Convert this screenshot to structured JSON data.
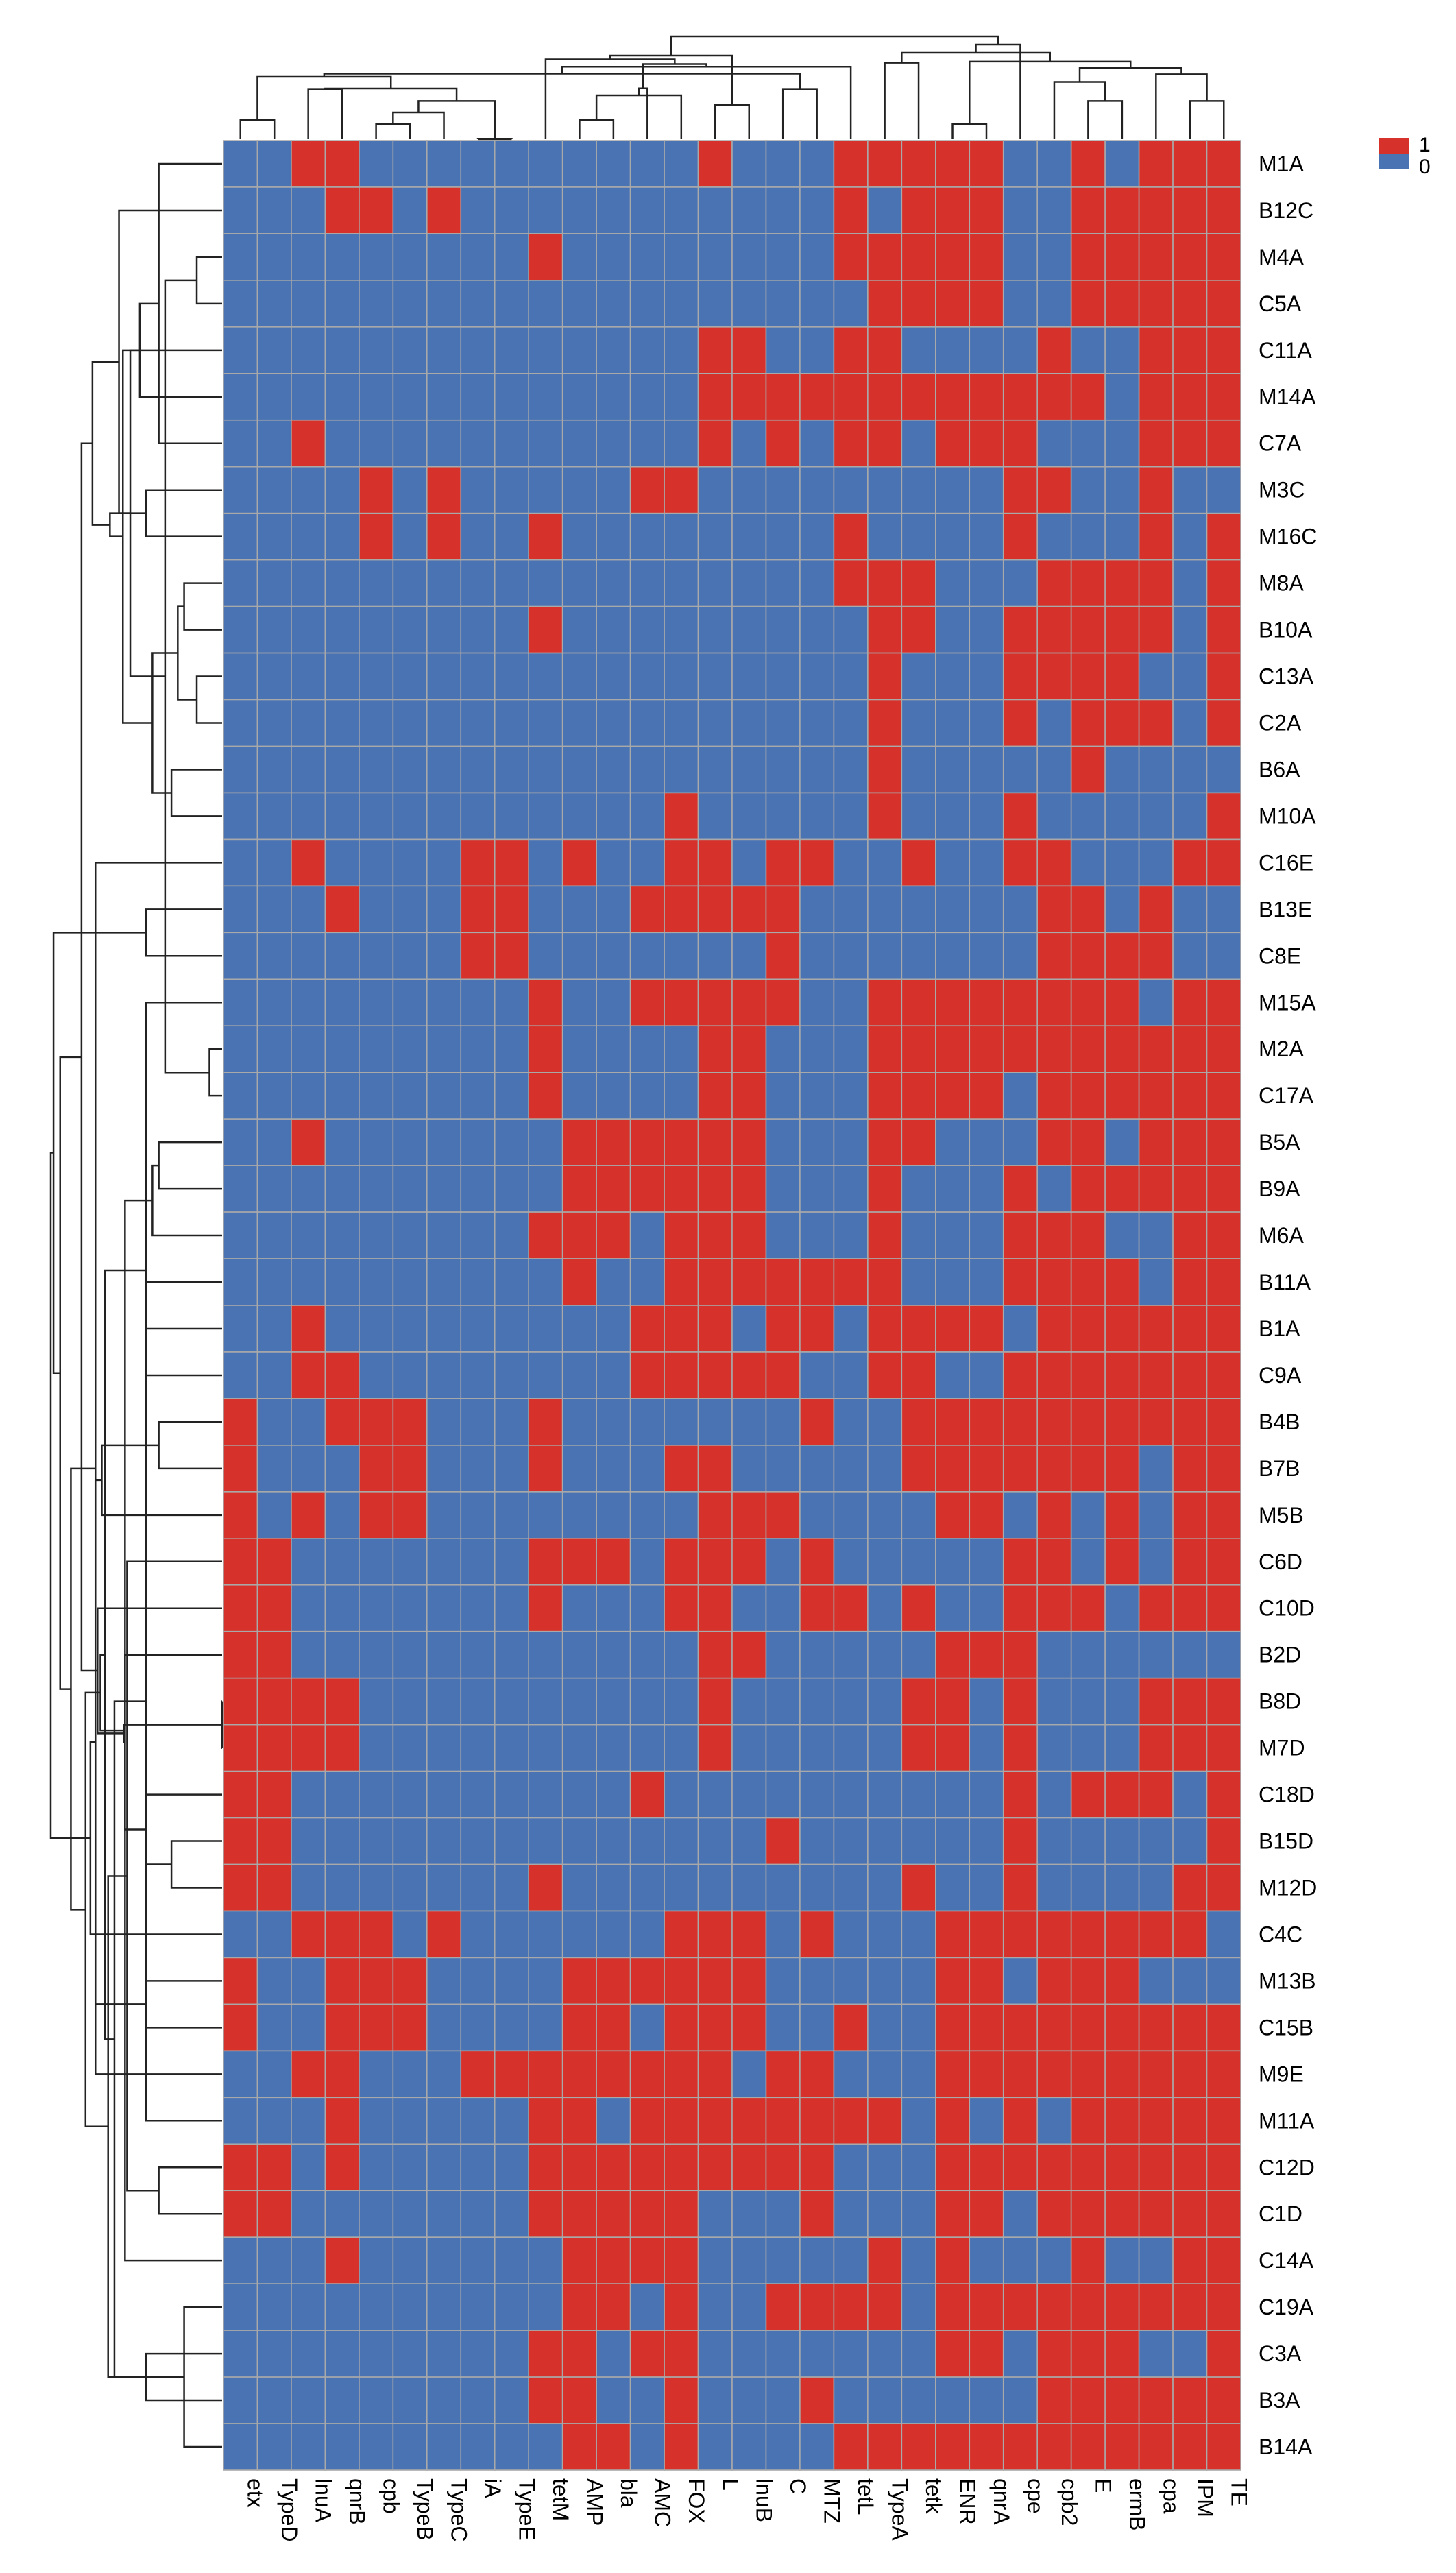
{
  "chart_data": {
    "type": "heatmap",
    "title": "",
    "xlabel": "",
    "ylabel": "",
    "columns": [
      "etx",
      "TypeD",
      "lnuA",
      "qnrB",
      "cpb",
      "TypeB",
      "TypeC",
      "iA",
      "TypeE",
      "tetM",
      "AMP",
      "bla",
      "AMC",
      "FOX",
      "L",
      "lnuB",
      "C",
      "MTZ",
      "tetL",
      "TypeA",
      "tetk",
      "ENR",
      "qnrA",
      "cpe",
      "cpb2",
      "E",
      "ermB",
      "cpa",
      "IPM",
      "TE"
    ],
    "rows": [
      "M1A",
      "B12C",
      "M4A",
      "C5A",
      "C11A",
      "M14A",
      "C7A",
      "M3C",
      "M16C",
      "M8A",
      "B10A",
      "C13A",
      "C2A",
      "B6A",
      "M10A",
      "C16E",
      "B13E",
      "C8E",
      "M15A",
      "M2A",
      "C17A",
      "B5A",
      "B9A",
      "M6A",
      "B11A",
      "B1A",
      "C9A",
      "B4B",
      "B7B",
      "M5B",
      "C6D",
      "C10D",
      "B2D",
      "B8D",
      "M7D",
      "C18D",
      "B15D",
      "M12D",
      "C4C",
      "M13B",
      "C15B",
      "M9E",
      "M11A",
      "C12D",
      "C1D",
      "C14A",
      "C19A",
      "C3A",
      "B3A",
      "B14A"
    ],
    "values": [
      [
        0,
        0,
        1,
        1,
        0,
        0,
        0,
        0,
        0,
        0,
        0,
        0,
        0,
        0,
        1,
        0,
        0,
        0,
        1,
        1,
        1,
        1,
        1,
        0,
        0,
        1,
        0,
        1,
        1,
        1
      ],
      [
        0,
        0,
        0,
        1,
        1,
        0,
        1,
        0,
        0,
        0,
        0,
        0,
        0,
        0,
        0,
        0,
        0,
        0,
        1,
        0,
        1,
        1,
        1,
        0,
        0,
        1,
        1,
        1,
        1,
        1
      ],
      [
        0,
        0,
        0,
        0,
        0,
        0,
        0,
        0,
        0,
        1,
        0,
        0,
        0,
        0,
        0,
        0,
        0,
        0,
        1,
        1,
        1,
        1,
        1,
        0,
        0,
        1,
        1,
        1,
        1,
        1
      ],
      [
        0,
        0,
        0,
        0,
        0,
        0,
        0,
        0,
        0,
        0,
        0,
        0,
        0,
        0,
        0,
        0,
        0,
        0,
        0,
        1,
        1,
        1,
        1,
        0,
        0,
        1,
        1,
        1,
        1,
        1
      ],
      [
        0,
        0,
        0,
        0,
        0,
        0,
        0,
        0,
        0,
        0,
        0,
        0,
        0,
        0,
        1,
        1,
        0,
        0,
        1,
        1,
        0,
        0,
        0,
        0,
        1,
        0,
        0,
        1,
        1,
        1
      ],
      [
        0,
        0,
        0,
        0,
        0,
        0,
        0,
        0,
        0,
        0,
        0,
        0,
        0,
        0,
        1,
        1,
        1,
        1,
        1,
        1,
        1,
        1,
        1,
        1,
        1,
        1,
        0,
        1,
        1,
        1
      ],
      [
        0,
        0,
        1,
        0,
        0,
        0,
        0,
        0,
        0,
        0,
        0,
        0,
        0,
        0,
        1,
        0,
        1,
        0,
        1,
        1,
        0,
        1,
        1,
        1,
        0,
        0,
        0,
        1,
        1,
        1
      ],
      [
        0,
        0,
        0,
        0,
        1,
        0,
        1,
        0,
        0,
        0,
        0,
        0,
        1,
        1,
        0,
        0,
        0,
        0,
        0,
        0,
        0,
        0,
        0,
        1,
        1,
        0,
        0,
        1,
        0,
        0
      ],
      [
        0,
        0,
        0,
        0,
        1,
        0,
        1,
        0,
        0,
        1,
        0,
        0,
        0,
        0,
        0,
        0,
        0,
        0,
        1,
        0,
        0,
        0,
        0,
        1,
        0,
        0,
        0,
        1,
        0,
        1
      ],
      [
        0,
        0,
        0,
        0,
        0,
        0,
        0,
        0,
        0,
        0,
        0,
        0,
        0,
        0,
        0,
        0,
        0,
        0,
        1,
        1,
        1,
        0,
        0,
        0,
        1,
        1,
        1,
        1,
        0,
        1
      ],
      [
        0,
        0,
        0,
        0,
        0,
        0,
        0,
        0,
        0,
        1,
        0,
        0,
        0,
        0,
        0,
        0,
        0,
        0,
        0,
        1,
        1,
        0,
        0,
        1,
        1,
        1,
        1,
        1,
        0,
        1
      ],
      [
        0,
        0,
        0,
        0,
        0,
        0,
        0,
        0,
        0,
        0,
        0,
        0,
        0,
        0,
        0,
        0,
        0,
        0,
        0,
        1,
        0,
        0,
        0,
        1,
        1,
        1,
        1,
        0,
        0,
        1
      ],
      [
        0,
        0,
        0,
        0,
        0,
        0,
        0,
        0,
        0,
        0,
        0,
        0,
        0,
        0,
        0,
        0,
        0,
        0,
        0,
        1,
        0,
        0,
        0,
        1,
        0,
        1,
        1,
        1,
        0,
        1
      ],
      [
        0,
        0,
        0,
        0,
        0,
        0,
        0,
        0,
        0,
        0,
        0,
        0,
        0,
        0,
        0,
        0,
        0,
        0,
        0,
        1,
        0,
        0,
        0,
        0,
        0,
        1,
        0,
        0,
        0,
        0
      ],
      [
        0,
        0,
        0,
        0,
        0,
        0,
        0,
        0,
        0,
        0,
        0,
        0,
        0,
        1,
        0,
        0,
        0,
        0,
        0,
        1,
        0,
        0,
        0,
        1,
        0,
        0,
        0,
        0,
        0,
        1
      ],
      [
        0,
        0,
        1,
        0,
        0,
        0,
        0,
        1,
        1,
        0,
        1,
        0,
        0,
        1,
        1,
        0,
        1,
        1,
        0,
        0,
        1,
        0,
        0,
        1,
        1,
        0,
        0,
        0,
        1,
        1
      ],
      [
        0,
        0,
        0,
        1,
        0,
        0,
        0,
        1,
        1,
        0,
        0,
        0,
        1,
        1,
        1,
        1,
        1,
        0,
        0,
        0,
        0,
        0,
        0,
        0,
        1,
        1,
        0,
        1,
        0,
        0
      ],
      [
        0,
        0,
        0,
        0,
        0,
        0,
        0,
        1,
        1,
        0,
        0,
        0,
        0,
        0,
        0,
        0,
        1,
        0,
        0,
        0,
        0,
        0,
        0,
        0,
        1,
        1,
        1,
        1,
        0,
        0
      ],
      [
        0,
        0,
        0,
        0,
        0,
        0,
        0,
        0,
        0,
        1,
        0,
        0,
        1,
        1,
        1,
        1,
        1,
        0,
        0,
        1,
        1,
        1,
        1,
        1,
        1,
        1,
        1,
        0,
        1,
        1
      ],
      [
        0,
        0,
        0,
        0,
        0,
        0,
        0,
        0,
        0,
        1,
        0,
        0,
        0,
        0,
        1,
        1,
        0,
        0,
        0,
        1,
        1,
        1,
        1,
        1,
        1,
        1,
        1,
        1,
        1,
        1
      ],
      [
        0,
        0,
        0,
        0,
        0,
        0,
        0,
        0,
        0,
        1,
        0,
        0,
        0,
        0,
        1,
        1,
        0,
        0,
        0,
        1,
        1,
        1,
        1,
        0,
        1,
        1,
        1,
        1,
        1,
        1
      ],
      [
        0,
        0,
        1,
        0,
        0,
        0,
        0,
        0,
        0,
        0,
        1,
        1,
        1,
        1,
        1,
        1,
        0,
        0,
        0,
        1,
        1,
        0,
        0,
        0,
        1,
        1,
        0,
        1,
        1,
        1
      ],
      [
        0,
        0,
        0,
        0,
        0,
        0,
        0,
        0,
        0,
        0,
        1,
        1,
        1,
        1,
        1,
        1,
        0,
        0,
        0,
        1,
        0,
        0,
        0,
        1,
        0,
        1,
        1,
        1,
        1,
        1
      ],
      [
        0,
        0,
        0,
        0,
        0,
        0,
        0,
        0,
        0,
        1,
        1,
        1,
        0,
        1,
        1,
        1,
        0,
        0,
        0,
        1,
        0,
        0,
        0,
        1,
        1,
        1,
        0,
        0,
        1,
        1
      ],
      [
        0,
        0,
        0,
        0,
        0,
        0,
        0,
        0,
        0,
        0,
        1,
        0,
        0,
        1,
        1,
        1,
        1,
        1,
        1,
        1,
        0,
        0,
        0,
        1,
        1,
        1,
        1,
        0,
        1,
        1
      ],
      [
        0,
        0,
        1,
        0,
        0,
        0,
        0,
        0,
        0,
        0,
        0,
        0,
        1,
        1,
        1,
        0,
        1,
        1,
        0,
        1,
        1,
        1,
        1,
        0,
        1,
        1,
        1,
        1,
        1,
        1
      ],
      [
        0,
        0,
        1,
        1,
        0,
        0,
        0,
        0,
        0,
        0,
        0,
        0,
        1,
        1,
        1,
        1,
        1,
        0,
        0,
        1,
        1,
        0,
        0,
        1,
        1,
        1,
        1,
        1,
        1,
        1
      ],
      [
        1,
        0,
        0,
        1,
        1,
        1,
        0,
        0,
        0,
        1,
        0,
        0,
        0,
        0,
        0,
        0,
        0,
        1,
        0,
        0,
        1,
        1,
        1,
        1,
        1,
        1,
        1,
        1,
        1,
        1
      ],
      [
        1,
        0,
        0,
        0,
        1,
        1,
        0,
        0,
        0,
        1,
        0,
        0,
        0,
        1,
        1,
        0,
        0,
        0,
        0,
        0,
        1,
        1,
        1,
        1,
        1,
        1,
        1,
        0,
        1,
        1
      ],
      [
        1,
        0,
        1,
        0,
        1,
        1,
        0,
        0,
        0,
        0,
        0,
        0,
        0,
        0,
        1,
        1,
        1,
        0,
        0,
        0,
        0,
        1,
        1,
        0,
        1,
        0,
        1,
        0,
        1,
        1
      ],
      [
        1,
        1,
        0,
        0,
        0,
        0,
        0,
        0,
        0,
        1,
        1,
        1,
        0,
        1,
        1,
        1,
        0,
        1,
        0,
        0,
        0,
        0,
        0,
        1,
        1,
        0,
        1,
        0,
        1,
        1
      ],
      [
        1,
        1,
        0,
        0,
        0,
        0,
        0,
        0,
        0,
        1,
        0,
        0,
        0,
        1,
        1,
        0,
        0,
        1,
        1,
        0,
        1,
        0,
        0,
        1,
        1,
        1,
        0,
        1,
        1,
        1
      ],
      [
        1,
        1,
        0,
        0,
        0,
        0,
        0,
        0,
        0,
        0,
        0,
        0,
        0,
        0,
        1,
        1,
        0,
        0,
        0,
        0,
        0,
        1,
        1,
        1,
        0,
        0,
        0,
        0,
        0,
        0
      ],
      [
        1,
        1,
        1,
        1,
        0,
        0,
        0,
        0,
        0,
        0,
        0,
        0,
        0,
        0,
        1,
        0,
        0,
        0,
        0,
        0,
        1,
        1,
        0,
        1,
        0,
        0,
        0,
        1,
        1,
        1
      ],
      [
        1,
        1,
        1,
        1,
        0,
        0,
        0,
        0,
        0,
        0,
        0,
        0,
        0,
        0,
        1,
        0,
        0,
        0,
        0,
        0,
        1,
        1,
        0,
        1,
        0,
        0,
        0,
        1,
        1,
        1
      ],
      [
        1,
        1,
        0,
        0,
        0,
        0,
        0,
        0,
        0,
        0,
        0,
        0,
        1,
        0,
        0,
        0,
        0,
        0,
        0,
        0,
        0,
        0,
        0,
        1,
        0,
        1,
        1,
        1,
        0,
        1
      ],
      [
        1,
        1,
        0,
        0,
        0,
        0,
        0,
        0,
        0,
        0,
        0,
        0,
        0,
        0,
        0,
        0,
        1,
        0,
        0,
        0,
        0,
        0,
        0,
        1,
        0,
        0,
        0,
        0,
        0,
        1
      ],
      [
        1,
        1,
        0,
        0,
        0,
        0,
        0,
        0,
        0,
        1,
        0,
        0,
        0,
        0,
        0,
        0,
        0,
        0,
        0,
        0,
        1,
        0,
        0,
        1,
        0,
        0,
        0,
        0,
        1,
        1
      ],
      [
        0,
        0,
        1,
        1,
        1,
        0,
        1,
        0,
        0,
        0,
        0,
        0,
        0,
        1,
        1,
        1,
        0,
        1,
        0,
        0,
        0,
        1,
        1,
        1,
        1,
        1,
        1,
        1,
        1,
        0
      ],
      [
        1,
        0,
        0,
        1,
        1,
        1,
        0,
        0,
        0,
        0,
        1,
        1,
        1,
        1,
        1,
        1,
        0,
        0,
        0,
        0,
        0,
        1,
        1,
        0,
        1,
        1,
        1,
        0,
        0,
        0
      ],
      [
        1,
        0,
        0,
        1,
        1,
        1,
        0,
        0,
        0,
        0,
        1,
        1,
        0,
        1,
        1,
        1,
        0,
        0,
        1,
        0,
        0,
        1,
        1,
        1,
        1,
        1,
        1,
        1,
        1,
        1
      ],
      [
        0,
        0,
        1,
        1,
        0,
        0,
        0,
        1,
        1,
        1,
        1,
        1,
        1,
        1,
        1,
        0,
        1,
        1,
        0,
        0,
        0,
        1,
        1,
        1,
        1,
        1,
        1,
        1,
        1,
        1
      ],
      [
        0,
        0,
        0,
        1,
        0,
        0,
        0,
        0,
        0,
        1,
        1,
        0,
        1,
        1,
        1,
        1,
        1,
        1,
        1,
        1,
        0,
        1,
        0,
        1,
        0,
        1,
        1,
        1,
        1,
        1
      ],
      [
        1,
        1,
        0,
        1,
        0,
        0,
        0,
        0,
        0,
        1,
        1,
        1,
        1,
        1,
        1,
        1,
        1,
        1,
        0,
        0,
        0,
        1,
        1,
        1,
        1,
        1,
        1,
        1,
        1,
        1
      ],
      [
        1,
        1,
        0,
        0,
        0,
        0,
        0,
        0,
        0,
        1,
        1,
        1,
        1,
        1,
        0,
        0,
        0,
        1,
        0,
        0,
        0,
        1,
        1,
        0,
        1,
        1,
        1,
        1,
        1,
        1
      ],
      [
        0,
        0,
        0,
        1,
        0,
        0,
        0,
        0,
        0,
        0,
        1,
        1,
        1,
        1,
        0,
        0,
        0,
        0,
        0,
        1,
        0,
        1,
        0,
        0,
        0,
        1,
        0,
        0,
        1,
        1
      ],
      [
        0,
        0,
        0,
        0,
        0,
        0,
        0,
        0,
        0,
        0,
        1,
        1,
        0,
        1,
        0,
        0,
        1,
        1,
        1,
        1,
        0,
        1,
        1,
        1,
        1,
        1,
        1,
        1,
        1,
        1
      ],
      [
        0,
        0,
        0,
        0,
        0,
        0,
        0,
        0,
        0,
        1,
        1,
        0,
        1,
        1,
        0,
        0,
        0,
        0,
        0,
        0,
        0,
        1,
        1,
        0,
        1,
        1,
        1,
        0,
        0,
        1
      ],
      [
        0,
        0,
        0,
        0,
        0,
        0,
        0,
        0,
        0,
        1,
        1,
        0,
        0,
        1,
        0,
        0,
        0,
        1,
        0,
        0,
        0,
        0,
        0,
        0,
        1,
        1,
        1,
        1,
        1,
        1
      ],
      [
        0,
        0,
        0,
        0,
        0,
        0,
        0,
        0,
        0,
        0,
        1,
        1,
        0,
        1,
        0,
        0,
        0,
        0,
        1,
        1,
        1,
        1,
        1,
        1,
        1,
        1,
        1,
        1,
        1,
        1
      ]
    ],
    "legend": {
      "position": "top-right",
      "entries": [
        {
          "label": "1",
          "color": "#d7312c"
        },
        {
          "label": "0",
          "color": "#4a73b4"
        }
      ]
    },
    "row_dendrogram": "left",
    "column_dendrogram": "top",
    "grid": true
  },
  "colors": {
    "present": "#d7312c",
    "absent": "#4a73b4",
    "gridline": "#a9a9a9",
    "dendrogram": "#222222"
  }
}
